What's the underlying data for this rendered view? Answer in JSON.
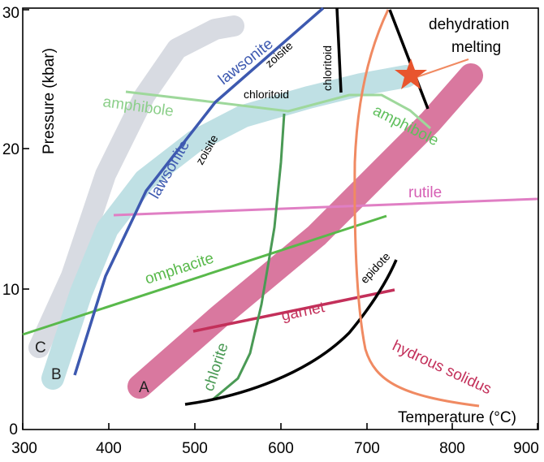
{
  "axes": {
    "x_label": "Temperature (°C)",
    "y_label": "Pressure (kbar)",
    "x_ticks": [
      "300",
      "400",
      "500",
      "600",
      "700",
      "800",
      "900"
    ],
    "y_ticks": [
      "0",
      "10",
      "20",
      "30"
    ],
    "x_range": [
      300,
      900
    ],
    "y_range": [
      0,
      30
    ]
  },
  "pt_paths": {
    "a": {
      "label": "A",
      "color": "#d9789f"
    },
    "b": {
      "label": "B",
      "color": "#bfe0e4"
    },
    "c": {
      "label": "C",
      "color": "#d8dbe2"
    }
  },
  "mineral_lines": {
    "lawsonite_upper": {
      "label": "lawsonite",
      "color": "#3d59b0"
    },
    "lawsonite_lower": {
      "label": "lawsonite",
      "color": "#3d59b0"
    },
    "zoisite_upper": {
      "label": "zoisite"
    },
    "zoisite_lower": {
      "label": "zoisite"
    },
    "chloritoid_horizontal": {
      "label": "chloritoid"
    },
    "chloritoid_vertical": {
      "label": "chloritoid"
    },
    "amphibole_left": {
      "label": "amphibole",
      "color": "#8ccf8a"
    },
    "amphibole_right": {
      "label": "amphibole",
      "color": "#5fbf5c"
    },
    "rutile": {
      "label": "rutile",
      "color": "#d65fb4"
    },
    "omphacite": {
      "label": "omphacite",
      "color": "#59b94b"
    },
    "garnet": {
      "label": "garnet",
      "color": "#c3305a"
    },
    "epidote": {
      "label": "epidote"
    },
    "chlorite": {
      "label": "chlorite",
      "color": "#4a9a55"
    },
    "hydrous_solidus": {
      "label": "hydrous solidus",
      "color": "#f08a62",
      "label_color": "#c3305a"
    }
  },
  "annotation": {
    "line1": "dehydration",
    "line2": "melting",
    "star_color": "#e8552e"
  }
}
